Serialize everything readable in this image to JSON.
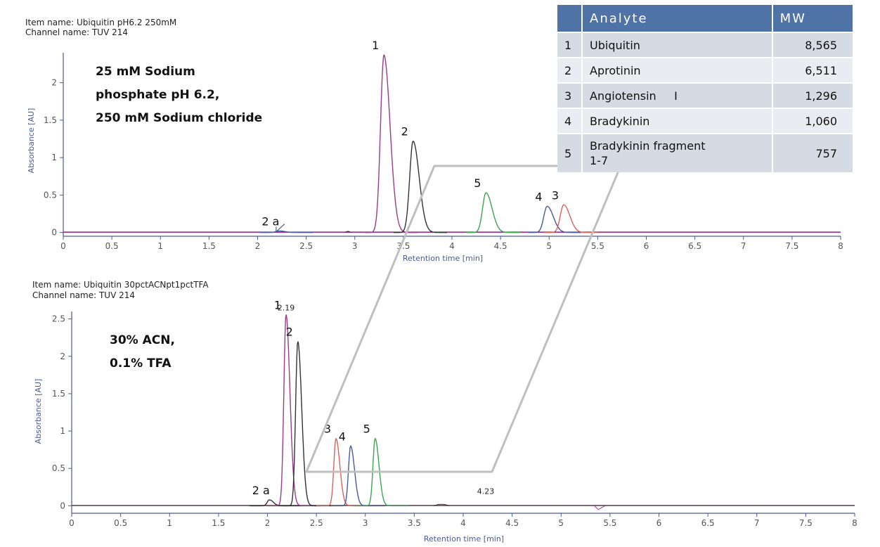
{
  "top": {
    "item_name": "Item name: Ubiquitin pH6.2 250mM",
    "channel_name": "Channel name: TUV 214",
    "condition": [
      "25 mM Sodium",
      "phosphate pH 6.2,",
      "250 mM Sodium chloride"
    ],
    "ylabel": "Absorbance [AU]",
    "xlabel": "Retention time [min]"
  },
  "bottom": {
    "item_name": "Item name: Ubiquitin 30pctACNpt1pctTFA",
    "channel_name": "Channel name: TUV 214",
    "condition": [
      "30% ACN,",
      "0.1% TFA"
    ],
    "ylabel": "Absorbance [AU]",
    "xlabel": "Retention time [min]"
  },
  "table": {
    "header": [
      "",
      "Analyte",
      "MW"
    ],
    "rows": [
      {
        "idx": "1",
        "analyte": "Ubiquitin",
        "mw": "8,565"
      },
      {
        "idx": "2",
        "analyte": "Aprotinin",
        "mw": "6,511"
      },
      {
        "idx": "3",
        "analyte": "Angiotensin     I",
        "mw": "1,296"
      },
      {
        "idx": "4",
        "analyte": "Bradykinin",
        "mw": "1,060"
      },
      {
        "idx": "5",
        "analyte": "Bradykinin fragment",
        "analyte2": "1-7",
        "mw": "757"
      }
    ]
  },
  "colors": {
    "ubiquitin": "#9b3a8e",
    "aprotinin": "#333333",
    "angiotensin": "#e0605a",
    "bradykinin": "#4a5a9a",
    "fragment": "#3aa650",
    "axis": "#4a5a9a"
  },
  "chart_data": [
    {
      "type": "line",
      "xlabel": "Retention time [min]",
      "ylabel": "Absorbance [AU]",
      "xlim": [
        0,
        8
      ],
      "ylim": [
        -0.05,
        2.4
      ],
      "xticks": [
        "0",
        "0.5",
        "1",
        "1.5",
        "2",
        "2.5",
        "3",
        "3.5",
        "4",
        "4.5",
        "5",
        "5.5",
        "6",
        "6.5",
        "7",
        "7.5",
        "8"
      ],
      "yticks": [
        "0",
        "0.5",
        "1",
        "1.5",
        "2"
      ],
      "peaks": [
        {
          "label": "2 a",
          "x": 2.22,
          "y": 0.02,
          "color": "#4a5a9a"
        },
        {
          "label": "1",
          "x": 3.3,
          "y": 2.37,
          "color": "#9b3a8e"
        },
        {
          "label": "2",
          "x": 3.6,
          "y": 1.22,
          "color": "#333333"
        },
        {
          "label": "5",
          "x": 4.35,
          "y": 0.53,
          "color": "#3aa650"
        },
        {
          "label": "4",
          "x": 4.98,
          "y": 0.35,
          "color": "#4a5a9a"
        },
        {
          "label": "3",
          "x": 5.15,
          "y": 0.37,
          "color": "#e0605a"
        }
      ]
    },
    {
      "type": "line",
      "xlabel": "Retention time [min]",
      "ylabel": "Absorbance [AU]",
      "xlim": [
        0,
        8
      ],
      "ylim": [
        -0.1,
        2.6
      ],
      "xticks": [
        "0",
        "0.5",
        "1",
        "1.5",
        "2",
        "2.5",
        "3",
        "3.5",
        "4",
        "4.5",
        "5",
        "5.5",
        "6",
        "6.5",
        "7",
        "7.5",
        "8"
      ],
      "yticks": [
        "0",
        "0.5",
        "1",
        "1.5",
        "2",
        "2.5"
      ],
      "annotations": [
        {
          "text": "2.19",
          "x": 2.19,
          "y": 2.56
        },
        {
          "text": "4.23",
          "x": 4.23,
          "y": 0.1
        }
      ],
      "peaks": [
        {
          "label": "2 a",
          "x": 2.02,
          "y": 0.08,
          "color": "#333333"
        },
        {
          "label": "1",
          "x": 2.19,
          "y": 2.56,
          "color": "#9b3a8e"
        },
        {
          "label": "2",
          "x": 2.31,
          "y": 2.2,
          "color": "#333333"
        },
        {
          "label": "3",
          "x": 2.7,
          "y": 0.9,
          "color": "#e0605a"
        },
        {
          "label": "4",
          "x": 2.85,
          "y": 0.8,
          "color": "#4a5a9a"
        },
        {
          "label": "5",
          "x": 3.1,
          "y": 0.9,
          "color": "#3aa650"
        }
      ]
    }
  ]
}
